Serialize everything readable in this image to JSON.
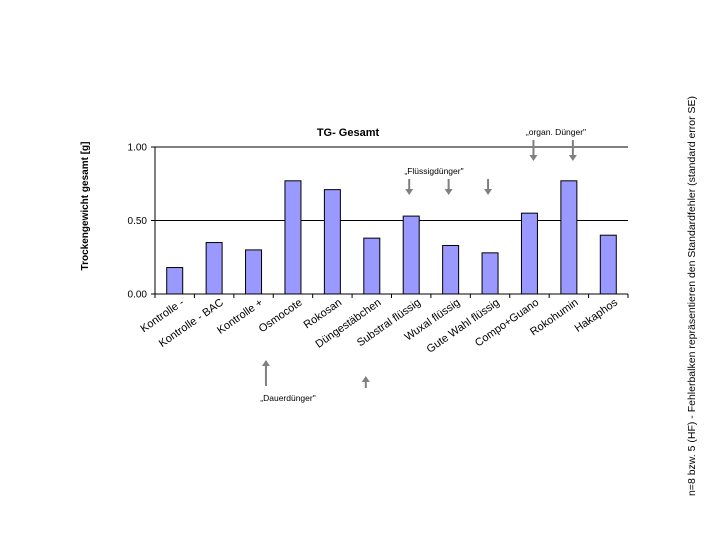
{
  "chart_data": {
    "type": "bar",
    "title": "TG- Gesamt",
    "ylabel": "Trockengewicht gesamt [g]",
    "xlabel": "",
    "ylim": [
      0,
      1.0
    ],
    "yticks": [
      "0.00",
      "0.50",
      "1.00"
    ],
    "ytick_values": [
      0,
      0.5,
      1.0
    ],
    "grid": true,
    "categories": [
      "Kontrolle -",
      "Kontrolle - BAC",
      "Kontrolle +",
      "Osmocote",
      "Rokosan",
      "Düngestäbchen",
      "Substral flüssig",
      "Wuxal flüssig",
      "Gute Wahl flüssig",
      "Compo+Guano",
      "Rokohumin",
      "Hakaphos"
    ],
    "values": [
      0.18,
      0.35,
      0.3,
      0.77,
      0.71,
      0.38,
      0.53,
      0.33,
      0.28,
      0.55,
      0.77,
      0.4
    ],
    "bar_color": "#9999ff",
    "annotations": [
      {
        "text": "„organ. Dünger\"",
        "arrow_direction": "down",
        "targets": [
          "Compo+Guano",
          "Rokohumin"
        ]
      },
      {
        "text": "„Flüssigdünger\"",
        "arrow_direction": "down",
        "targets": [
          "Substral flüssig",
          "Wuxal flüssig",
          "Gute Wahl flüssig"
        ]
      },
      {
        "text": "„Dauerdünger\"",
        "arrow_direction": "up",
        "targets": [
          "Osmocote",
          "Düngestäbchen"
        ]
      }
    ],
    "side_note": "n=8  bzw. 5 (HF) - Fehlerbalken repräsentieren den Standardfehler (standard error SE)"
  }
}
